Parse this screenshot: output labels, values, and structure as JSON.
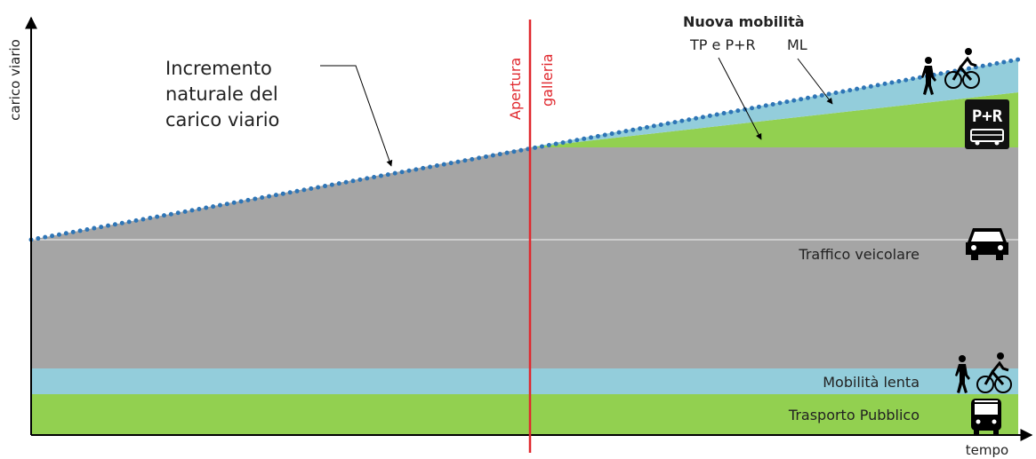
{
  "axes": {
    "y_label": "carico viario",
    "x_label": "tempo"
  },
  "annotation": {
    "lines": [
      "Incremento",
      "naturale del",
      "carico viario"
    ]
  },
  "event": {
    "label_line1": "Apertura",
    "label_line2": "galleria",
    "color": "#e0282e"
  },
  "new_mobility": {
    "title": "Nuova mobilità",
    "tp_pr_label": "TP e P+R",
    "ml_label": "ML"
  },
  "bands": {
    "traffic_label": "Traffico veicolare",
    "slow_label": "Mobilità lenta",
    "transit_label": "Trasporto Pubblico"
  },
  "icons": {
    "pr_sign_text": "P+R"
  },
  "colors": {
    "grey": "#a5a5a5",
    "blue": "#93cddb",
    "green": "#92d050",
    "dots": "#2e75b6",
    "axis": "#000000"
  }
}
